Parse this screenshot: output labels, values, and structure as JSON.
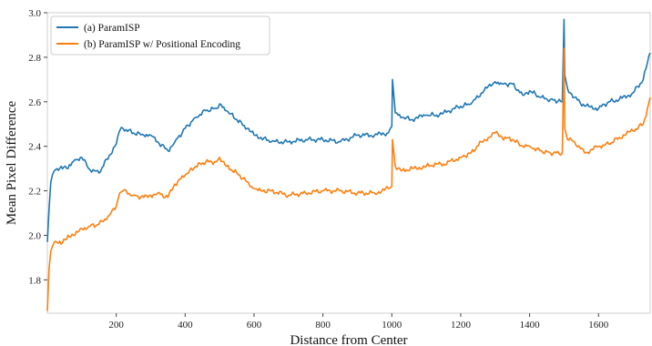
{
  "chart_data": {
    "type": "line",
    "title": "",
    "xlabel": "Distance from Center",
    "ylabel": "Mean Pixel Difference",
    "xlim": [
      0,
      1750
    ],
    "ylim": [
      1.65,
      3.0
    ],
    "xticks": [
      200,
      400,
      600,
      800,
      1000,
      1200,
      1400,
      1600
    ],
    "xtick_labels": [
      "200",
      "400",
      "600",
      "800",
      "1000",
      "1200",
      "1400",
      "1600"
    ],
    "yticks": [
      1.8,
      2.0,
      2.2,
      2.4,
      2.6,
      2.8,
      3.0
    ],
    "ytick_labels": [
      "1.8",
      "2.0",
      "2.2",
      "2.4",
      "2.6",
      "2.8",
      "3.0"
    ],
    "grid": false,
    "legend_position": "top-left",
    "series": [
      {
        "name": "(a) ParamISP",
        "color": "#1f77b4",
        "x": [
          0,
          5,
          10,
          20,
          40,
          60,
          80,
          100,
          120,
          150,
          180,
          200,
          210,
          220,
          250,
          280,
          300,
          320,
          350,
          370,
          400,
          430,
          460,
          490,
          500,
          520,
          550,
          580,
          600,
          620,
          650,
          700,
          750,
          800,
          850,
          900,
          950,
          990,
          1000,
          1002,
          1010,
          1030,
          1060,
          1100,
          1130,
          1150,
          1200,
          1230,
          1260,
          1300,
          1320,
          1350,
          1380,
          1400,
          1430,
          1460,
          1495,
          1500,
          1502,
          1510,
          1530,
          1560,
          1600,
          1630,
          1660,
          1700,
          1730,
          1750
        ],
        "y": [
          1.97,
          2.12,
          2.24,
          2.29,
          2.31,
          2.3,
          2.34,
          2.35,
          2.3,
          2.28,
          2.36,
          2.41,
          2.47,
          2.48,
          2.46,
          2.45,
          2.45,
          2.42,
          2.38,
          2.42,
          2.48,
          2.53,
          2.56,
          2.57,
          2.59,
          2.56,
          2.52,
          2.48,
          2.45,
          2.44,
          2.42,
          2.42,
          2.43,
          2.43,
          2.42,
          2.45,
          2.45,
          2.46,
          2.49,
          2.7,
          2.55,
          2.53,
          2.52,
          2.54,
          2.54,
          2.55,
          2.58,
          2.59,
          2.64,
          2.69,
          2.68,
          2.68,
          2.63,
          2.65,
          2.62,
          2.61,
          2.6,
          2.97,
          2.72,
          2.66,
          2.62,
          2.58,
          2.57,
          2.6,
          2.61,
          2.64,
          2.7,
          2.82
        ]
      },
      {
        "name": "(b) ParamISP w/ Positional Encoding",
        "color": "#ff7f0e",
        "x": [
          0,
          5,
          10,
          20,
          40,
          60,
          80,
          100,
          120,
          150,
          180,
          200,
          210,
          220,
          250,
          280,
          300,
          320,
          350,
          370,
          400,
          430,
          460,
          490,
          500,
          520,
          550,
          580,
          600,
          620,
          650,
          700,
          750,
          800,
          850,
          900,
          950,
          990,
          1000,
          1002,
          1010,
          1030,
          1060,
          1100,
          1130,
          1150,
          1200,
          1230,
          1260,
          1300,
          1320,
          1350,
          1380,
          1400,
          1430,
          1460,
          1495,
          1500,
          1502,
          1510,
          1530,
          1560,
          1600,
          1630,
          1660,
          1700,
          1730,
          1750
        ],
        "y": [
          1.66,
          1.85,
          1.93,
          1.97,
          1.96,
          2.0,
          2.0,
          2.03,
          2.04,
          2.05,
          2.09,
          2.13,
          2.19,
          2.2,
          2.18,
          2.17,
          2.18,
          2.19,
          2.17,
          2.23,
          2.27,
          2.31,
          2.33,
          2.33,
          2.35,
          2.31,
          2.28,
          2.24,
          2.21,
          2.2,
          2.2,
          2.18,
          2.19,
          2.2,
          2.2,
          2.19,
          2.19,
          2.21,
          2.22,
          2.43,
          2.31,
          2.29,
          2.3,
          2.31,
          2.32,
          2.32,
          2.35,
          2.37,
          2.42,
          2.46,
          2.44,
          2.43,
          2.4,
          2.4,
          2.38,
          2.37,
          2.37,
          2.84,
          2.48,
          2.43,
          2.42,
          2.37,
          2.4,
          2.41,
          2.44,
          2.47,
          2.5,
          2.62
        ]
      }
    ]
  }
}
